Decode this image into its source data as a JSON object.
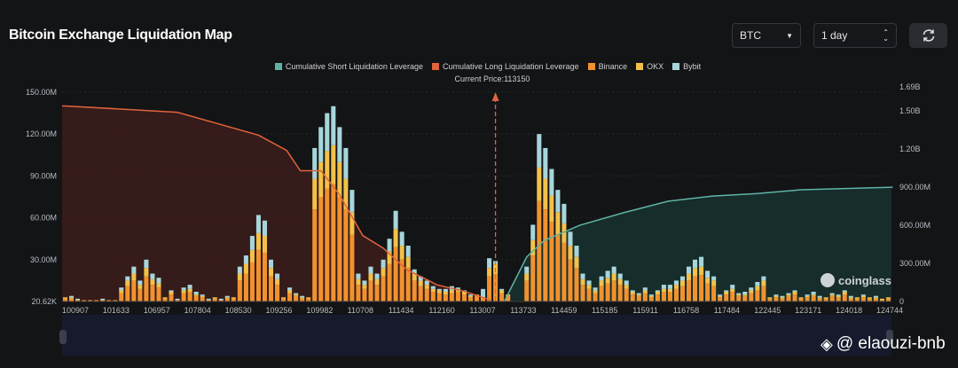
{
  "header": {
    "title": "Bitcoin Exchange Liquidation Map",
    "coin_select": "BTC",
    "period_select": "1 day",
    "refresh_icon": "refresh-icon"
  },
  "watermark": {
    "coinglass": "coinglass",
    "author": "@ elaouzi-bnb"
  },
  "colors": {
    "short": "#5fb3a6",
    "long": "#e0643c",
    "binance": "#f0922f",
    "okx": "#f3c14a",
    "bybit": "#a6d6dc",
    "price_line": "#e0643c"
  },
  "chart_data": {
    "type": "bar",
    "title": "Bitcoin Exchange Liquidation Map",
    "current_price_label": "Current Price:113150",
    "current_price_index": 69,
    "legend": [
      "Cumulative Short Liquidation Leverage",
      "Cumulative Long Liquidation Leverage",
      "Binance",
      "OKX",
      "Bybit"
    ],
    "legend_placement": "top-center",
    "x_tick_labels": [
      "100907",
      "101633",
      "106957",
      "107804",
      "108530",
      "109256",
      "109982",
      "110708",
      "111434",
      "112160",
      "113007",
      "113733",
      "114459",
      "115185",
      "115911",
      "116758",
      "117484",
      "122445",
      "123171",
      "124018",
      "124744"
    ],
    "y_left_ticks": [
      "20.62K",
      "30.00M",
      "60.00M",
      "90.00M",
      "120.00M",
      "150.00M"
    ],
    "y_right_ticks": [
      "0",
      "300.00M",
      "600.00M",
      "900.00M",
      "1.20B",
      "1.50B",
      "1.69B"
    ],
    "y_left_range_millions": [
      0,
      150
    ],
    "y_right_range_billions": [
      0,
      1.69
    ],
    "series": [
      {
        "name": "Binance",
        "unit": "M",
        "values": [
          2,
          2,
          1,
          1,
          1,
          1,
          1,
          1,
          1,
          6,
          11,
          15,
          9,
          18,
          12,
          10,
          2,
          5,
          1,
          6,
          7,
          4,
          3,
          1,
          2,
          1,
          2,
          2,
          15,
          20,
          28,
          37,
          35,
          18,
          12,
          2,
          6,
          4,
          2,
          2,
          66,
          75,
          81,
          84,
          75,
          66,
          48,
          12,
          9,
          15,
          12,
          18,
          27,
          39,
          30,
          24,
          15,
          11,
          9,
          7,
          6,
          5,
          6,
          7,
          5,
          3,
          4,
          2,
          18,
          20,
          6,
          4,
          0,
          0,
          15,
          33,
          72,
          66,
          57,
          48,
          42,
          30,
          24,
          12,
          9,
          6,
          11,
          13,
          15,
          12,
          9,
          5,
          4,
          6,
          3,
          5,
          7,
          7,
          9,
          11,
          15,
          18,
          19,
          13,
          11,
          3,
          5,
          7,
          4,
          4,
          6,
          8,
          11,
          2,
          3,
          2,
          4,
          5,
          2,
          3,
          4,
          2,
          2,
          4,
          3,
          5,
          2,
          2,
          3,
          2,
          2,
          1,
          2
        ]
      },
      {
        "name": "OKX",
        "unit": "M",
        "values": [
          1,
          1,
          0,
          0,
          0,
          0,
          0,
          0,
          0,
          2,
          4,
          5,
          3,
          6,
          4,
          3,
          1,
          2,
          0,
          2,
          2,
          1,
          1,
          0,
          1,
          0,
          1,
          1,
          5,
          7,
          9,
          12,
          12,
          6,
          4,
          1,
          2,
          1,
          1,
          1,
          22,
          25,
          27,
          28,
          25,
          22,
          16,
          4,
          3,
          5,
          4,
          6,
          9,
          13,
          10,
          8,
          5,
          4,
          3,
          2,
          2,
          2,
          2,
          2,
          2,
          1,
          1,
          1,
          6,
          7,
          2,
          1,
          0,
          0,
          5,
          11,
          24,
          22,
          19,
          16,
          14,
          10,
          8,
          4,
          3,
          2,
          4,
          4,
          5,
          4,
          3,
          2,
          1,
          2,
          1,
          2,
          2,
          2,
          3,
          4,
          5,
          6,
          6,
          4,
          4,
          1,
          2,
          2,
          1,
          1,
          2,
          3,
          4,
          1,
          1,
          1,
          1,
          2,
          1,
          1,
          1,
          1,
          1,
          1,
          1,
          2,
          1,
          1,
          1,
          1,
          1,
          1,
          1
        ]
      },
      {
        "name": "Bybit",
        "unit": "M",
        "values": [
          0,
          1,
          1,
          0,
          0,
          0,
          1,
          0,
          0,
          2,
          3,
          5,
          3,
          6,
          4,
          4,
          0,
          1,
          1,
          2,
          3,
          2,
          1,
          1,
          0,
          1,
          1,
          0,
          5,
          6,
          10,
          13,
          11,
          6,
          4,
          0,
          2,
          1,
          1,
          0,
          22,
          25,
          27,
          28,
          25,
          22,
          16,
          4,
          3,
          5,
          4,
          6,
          9,
          13,
          10,
          8,
          3,
          3,
          3,
          2,
          1,
          2,
          3,
          1,
          1,
          1,
          0,
          6,
          7,
          2,
          1,
          0,
          0,
          0,
          5,
          11,
          24,
          22,
          19,
          16,
          14,
          10,
          8,
          4,
          3,
          2,
          3,
          5,
          5,
          4,
          3,
          1,
          1,
          2,
          1,
          1,
          3,
          3,
          3,
          3,
          5,
          6,
          7,
          5,
          3,
          1,
          1,
          3,
          1,
          2,
          2,
          3,
          3,
          0,
          1,
          1,
          1,
          1,
          0,
          1,
          2,
          1,
          0,
          1,
          1,
          1,
          1,
          0,
          1,
          0,
          1,
          0,
          0
        ]
      },
      {
        "name": "Cumulative Long Liquidation Leverage",
        "unit": "B",
        "points": [
          [
            0,
            1.54
          ],
          [
            18,
            1.49
          ],
          [
            31,
            1.31
          ],
          [
            35.5,
            1.19
          ],
          [
            37.7,
            1.03
          ],
          [
            41,
            1.03
          ],
          [
            44,
            0.84
          ],
          [
            47.7,
            0.52
          ],
          [
            51,
            0.42
          ],
          [
            54.8,
            0.25
          ],
          [
            59.7,
            0.13
          ],
          [
            64,
            0.08
          ],
          [
            68.3,
            0.01
          ]
        ]
      },
      {
        "name": "Cumulative Short Liquidation Leverage",
        "unit": "B",
        "points": [
          [
            70.4,
            0
          ],
          [
            74,
            0.35
          ],
          [
            76.8,
            0.48
          ],
          [
            82.5,
            0.6
          ],
          [
            89.6,
            0.7
          ],
          [
            96.7,
            0.79
          ],
          [
            103.8,
            0.83
          ],
          [
            111,
            0.85
          ],
          [
            118,
            0.88
          ],
          [
            132.7,
            0.9
          ]
        ]
      }
    ]
  }
}
